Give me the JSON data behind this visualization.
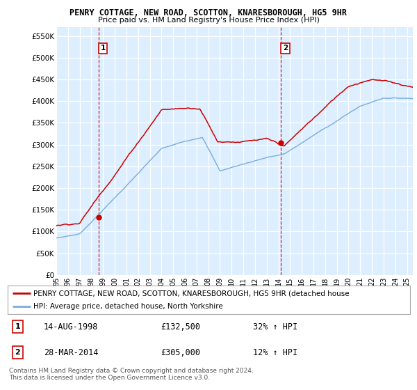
{
  "title": "PENRY COTTAGE, NEW ROAD, SCOTTON, KNARESBOROUGH, HG5 9HR",
  "subtitle": "Price paid vs. HM Land Registry's House Price Index (HPI)",
  "ylabel_ticks": [
    "£0",
    "£50K",
    "£100K",
    "£150K",
    "£200K",
    "£250K",
    "£300K",
    "£350K",
    "£400K",
    "£450K",
    "£500K",
    "£550K"
  ],
  "ylim": [
    0,
    570000
  ],
  "xlim_start": 1995.0,
  "xlim_end": 2025.5,
  "sale1_x": 1998.617,
  "sale1_y": 132500,
  "sale1_label": "1",
  "sale1_date": "14-AUG-1998",
  "sale1_price": "£132,500",
  "sale1_hpi": "32% ↑ HPI",
  "sale2_x": 2014.23,
  "sale2_y": 305000,
  "sale2_label": "2",
  "sale2_date": "28-MAR-2014",
  "sale2_price": "£305,000",
  "sale2_hpi": "12% ↑ HPI",
  "line_color_property": "#cc0000",
  "line_color_hpi": "#7aacdc",
  "vline_color": "#cc0000",
  "bg_fill_color": "#ddeeff",
  "legend_property": "PENRY COTTAGE, NEW ROAD, SCOTTON, KNARESBOROUGH, HG5 9HR (detached house",
  "legend_hpi": "HPI: Average price, detached house, North Yorkshire",
  "footer": "Contains HM Land Registry data © Crown copyright and database right 2024.\nThis data is licensed under the Open Government Licence v3.0.",
  "background_color": "#ffffff",
  "grid_color": "#cccccc"
}
